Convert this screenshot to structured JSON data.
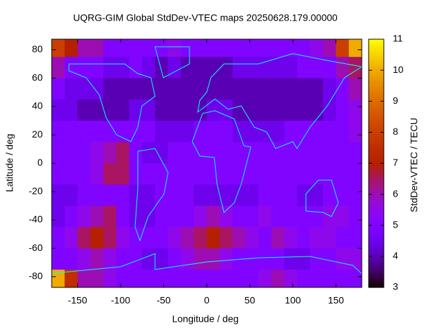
{
  "chart_data": {
    "type": "heatmap",
    "title": "UQRG-GIM Global StdDev-VTEC maps 20250628.179.00000",
    "xlabel": "Longitude / deg",
    "ylabel": "Latitude / deg",
    "cblabel": "StdDev-VTEC / TECU",
    "colormap": "gnuplot-7-5-15",
    "x": [
      -172.5,
      -157.5,
      -142.5,
      -127.5,
      -112.5,
      -97.5,
      -82.5,
      -67.5,
      -52.5,
      -37.5,
      -22.5,
      -7.5,
      7.5,
      22.5,
      37.5,
      52.5,
      67.5,
      82.5,
      97.5,
      112.5,
      127.5,
      142.5,
      157.5,
      172.5
    ],
    "y": [
      82.5,
      67.5,
      52.5,
      37.5,
      22.5,
      7.5,
      -7.5,
      -22.5,
      -37.5,
      -52.5,
      -67.5,
      -82.5
    ],
    "z": [
      [
        8,
        7,
        6,
        6,
        5,
        5,
        5,
        5,
        5,
        5.5,
        5,
        5,
        5,
        5,
        5,
        5,
        5,
        5,
        5,
        5,
        5.5,
        6,
        8,
        10
      ],
      [
        6,
        5,
        5,
        5,
        4.5,
        4.5,
        5,
        4.5,
        4,
        4.5,
        4,
        4,
        4,
        4,
        4.5,
        4.5,
        4.5,
        4.5,
        4.5,
        5,
        5,
        5,
        6,
        6.5
      ],
      [
        5,
        4.5,
        4.5,
        4.5,
        4,
        4,
        4,
        4,
        4,
        4,
        4,
        4,
        4,
        4,
        4,
        4,
        4,
        4,
        4,
        4,
        4,
        4.5,
        5,
        6
      ],
      [
        4.5,
        4.5,
        4,
        4,
        4,
        4,
        4.5,
        4.5,
        4,
        4,
        4,
        4,
        4.5,
        4.5,
        4,
        4,
        4,
        4,
        4,
        4,
        4,
        4.5,
        5,
        5.5
      ],
      [
        5,
        5,
        5,
        5,
        5,
        5,
        5,
        5,
        4.5,
        4.5,
        4.5,
        5,
        5,
        5,
        4.5,
        4.5,
        4.5,
        4.5,
        5,
        5,
        5,
        5,
        5,
        5.5
      ],
      [
        5,
        5,
        5,
        5.5,
        6,
        6.5,
        5,
        4.5,
        4.5,
        5,
        5,
        5,
        5,
        5,
        5,
        5,
        5,
        5,
        5,
        5,
        5,
        5,
        5,
        5
      ],
      [
        5,
        5,
        5,
        5.5,
        6.5,
        6.5,
        5,
        5,
        5,
        5,
        5,
        5,
        5,
        5,
        5,
        5,
        5,
        5,
        5,
        5,
        5,
        5,
        5,
        5
      ],
      [
        4.5,
        4.5,
        5,
        5,
        5,
        5,
        4.5,
        4.5,
        5,
        5,
        5,
        4.5,
        4.5,
        4.5,
        4.5,
        4.5,
        5,
        5,
        5,
        4.5,
        4.5,
        5,
        5,
        5
      ],
      [
        4.5,
        5,
        5.5,
        6,
        6.5,
        5,
        4.5,
        4.5,
        5,
        5,
        5,
        5.5,
        6,
        5.5,
        5,
        5,
        5.5,
        5,
        5,
        5,
        5,
        5.5,
        5.5,
        5
      ],
      [
        5,
        5.5,
        6.5,
        7,
        6.5,
        5.5,
        5,
        5,
        5,
        5.5,
        6,
        6.5,
        7,
        6.5,
        6,
        5.5,
        5,
        6,
        5.5,
        5,
        5.5,
        5.5,
        5,
        5
      ],
      [
        5,
        5,
        5.5,
        6,
        5.5,
        5,
        5,
        4.5,
        4.5,
        5,
        5.5,
        6,
        6,
        5.5,
        5,
        5,
        5,
        5,
        4.5,
        4.5,
        5,
        5,
        5.5,
        5.5
      ],
      [
        10,
        7.5,
        6,
        6,
        5.5,
        5,
        5,
        5,
        5,
        5,
        5,
        5,
        5,
        5,
        5,
        5,
        5.5,
        6,
        5.5,
        5,
        5,
        5,
        5,
        5
      ]
    ],
    "xlim": [
      -180,
      180
    ],
    "ylim": [
      -87.5,
      87.5
    ],
    "xticks": [
      -150,
      -100,
      -50,
      0,
      50,
      100,
      150
    ],
    "yticks": [
      -80,
      -60,
      -40,
      -20,
      0,
      20,
      40,
      60,
      80
    ],
    "cblim": [
      3,
      11
    ],
    "cbticks": [
      3,
      4,
      5,
      6,
      7,
      8,
      9,
      10,
      11
    ]
  }
}
